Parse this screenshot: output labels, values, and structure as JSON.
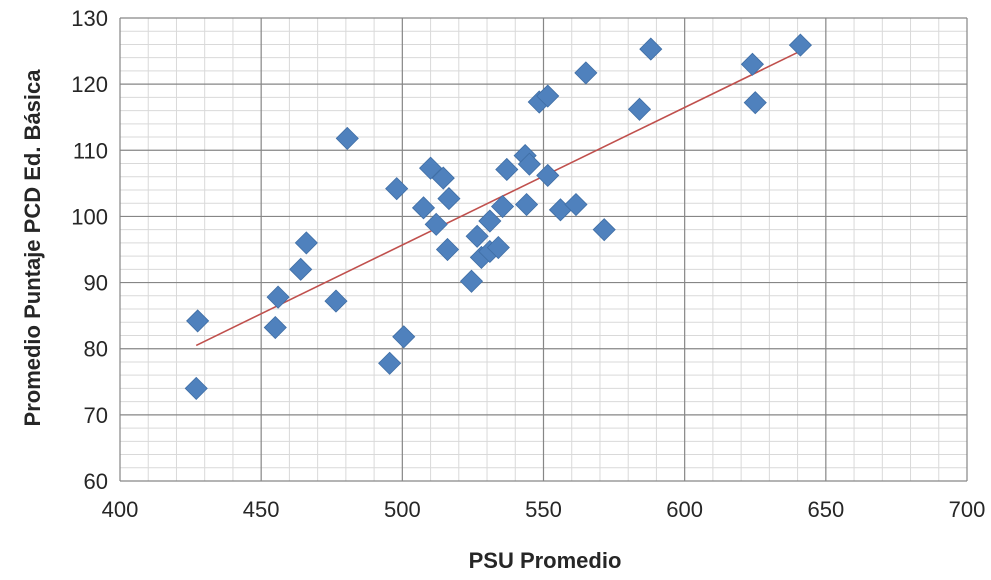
{
  "chart_data": {
    "type": "scatter",
    "title": "",
    "xlabel": "PSU Promedio",
    "ylabel": "Promedio Puntaje PCD Ed. Básica",
    "xlim": [
      400,
      700
    ],
    "ylim": [
      60,
      130
    ],
    "x_ticks": [
      "400",
      "450",
      "500",
      "550",
      "600",
      "650",
      "700"
    ],
    "y_ticks": [
      "60",
      "70",
      "80",
      "90",
      "100",
      "110",
      "120",
      "130"
    ],
    "x_ticks_values": [
      400,
      450,
      500,
      550,
      600,
      650,
      700
    ],
    "y_ticks_values": [
      60,
      70,
      80,
      90,
      100,
      110,
      120,
      130
    ],
    "grid": "major and minor",
    "legend": "none",
    "series": [
      {
        "marker": "diamond",
        "color": "#4f81bd",
        "points": [
          [
            427.5,
            84.2
          ],
          [
            427,
            74.0
          ],
          [
            455,
            83.2
          ],
          [
            456,
            87.8
          ],
          [
            464,
            92.0
          ],
          [
            466,
            96.0
          ],
          [
            476.5,
            87.2
          ],
          [
            480.5,
            111.8
          ],
          [
            495.5,
            77.8
          ],
          [
            498,
            104.2
          ],
          [
            500.5,
            81.8
          ],
          [
            507.5,
            101.3
          ],
          [
            510,
            107.3
          ],
          [
            512,
            98.8
          ],
          [
            514.5,
            105.8
          ],
          [
            516,
            95.0
          ],
          [
            516.5,
            102.7
          ],
          [
            524.5,
            90.2
          ],
          [
            526.5,
            97.0
          ],
          [
            528,
            93.8
          ],
          [
            531,
            99.3
          ],
          [
            531,
            94.7
          ],
          [
            534,
            95.3
          ],
          [
            535.5,
            101.5
          ],
          [
            537,
            107.1
          ],
          [
            543.5,
            109.2
          ],
          [
            544,
            101.8
          ],
          [
            545,
            107.9
          ],
          [
            548.5,
            117.3
          ],
          [
            551.5,
            118.2
          ],
          [
            551.5,
            106.2
          ],
          [
            556,
            101.0
          ],
          [
            561.5,
            101.8
          ],
          [
            565,
            121.7
          ],
          [
            571.5,
            98.0
          ],
          [
            584,
            116.2
          ],
          [
            588,
            125.3
          ],
          [
            624,
            123.0
          ],
          [
            625,
            117.2
          ],
          [
            641,
            125.9
          ]
        ]
      }
    ],
    "trendline": {
      "type": "linear",
      "color": "#c0504d",
      "x": [
        427,
        641
      ],
      "y": [
        80.5,
        125.0
      ]
    }
  }
}
